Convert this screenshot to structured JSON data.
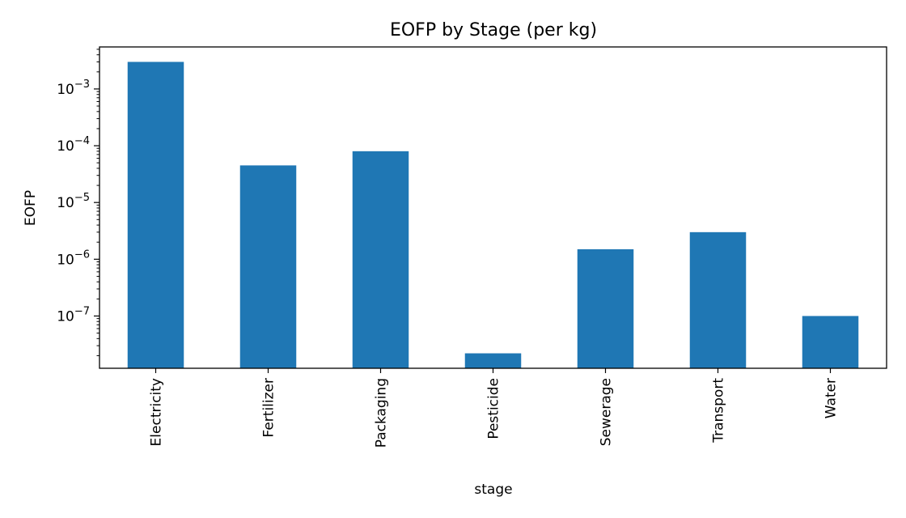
{
  "chart_data": {
    "type": "bar",
    "title": "EOFP by Stage (per kg)",
    "xlabel": "stage",
    "ylabel": "EOFP",
    "yscale": "log",
    "ylim": [
      1.2e-08,
      0.0055
    ],
    "grid": false,
    "legend": "none",
    "bar_color": "#1f77b4",
    "categories": [
      "Electricity",
      "Fertilizer",
      "Packaging",
      "Pesticide",
      "Sewerage",
      "Transport",
      "Water"
    ],
    "values": [
      0.003,
      4.5e-05,
      8e-05,
      2.2e-08,
      1.5e-06,
      3e-06,
      1e-07
    ],
    "yticks": [
      {
        "value": 0.001,
        "base": "10",
        "exp": "−3"
      },
      {
        "value": 0.0001,
        "base": "10",
        "exp": "−4"
      },
      {
        "value": 1e-05,
        "base": "10",
        "exp": "−5"
      },
      {
        "value": 1e-06,
        "base": "10",
        "exp": "−6"
      },
      {
        "value": 1e-07,
        "base": "10",
        "exp": "−7"
      }
    ]
  }
}
